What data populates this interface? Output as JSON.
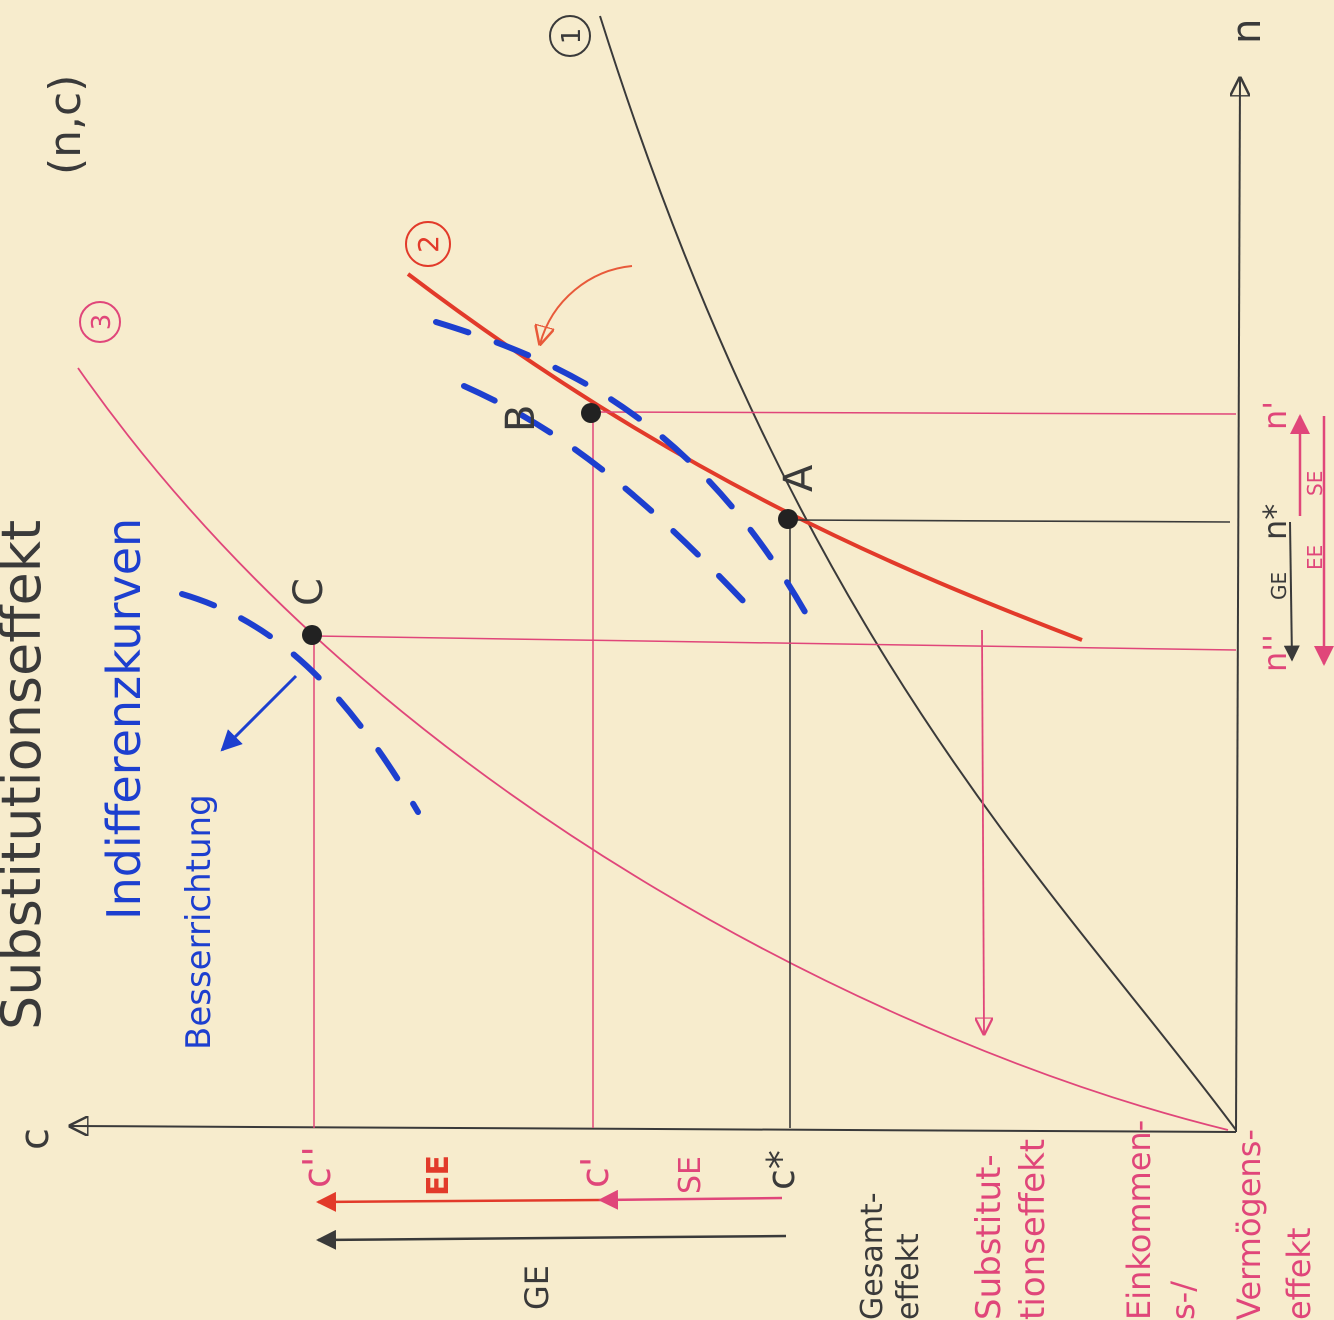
{
  "title": "Substitutionseffekt",
  "coords_label": "(n,c)",
  "axes": {
    "c_label": "c",
    "n_label": "n"
  },
  "curves": {
    "curve1_label": "1",
    "curve2_label": "2",
    "curve3_label": "3"
  },
  "points": {
    "A": "A",
    "B": "B",
    "C": "C"
  },
  "indifference_label": "Indifferenzkurven",
  "better_direction_label": "Besserrichtung",
  "c_values": {
    "c_double": "c''",
    "c_single": "c'",
    "c_star": "c*"
  },
  "n_values": {
    "n_double": "n''",
    "n_star": "n*",
    "n_single": "n'"
  },
  "arrows": {
    "GE": "GE",
    "EE": "EE",
    "SE": "SE"
  },
  "legend": {
    "gesamt": [
      "Gesamt-",
      "effekt"
    ],
    "substitution": [
      "Substitut-",
      "tionseffekt"
    ],
    "einkommen": [
      "Einkommen-",
      "s-/",
      "Vermögens-",
      "effekt"
    ]
  },
  "colors": {
    "paper": "#f7eccd",
    "black": "#3a3a3a",
    "pink": "#e0467a",
    "red": "#e23a2a",
    "blue": "#1d3fcf"
  }
}
